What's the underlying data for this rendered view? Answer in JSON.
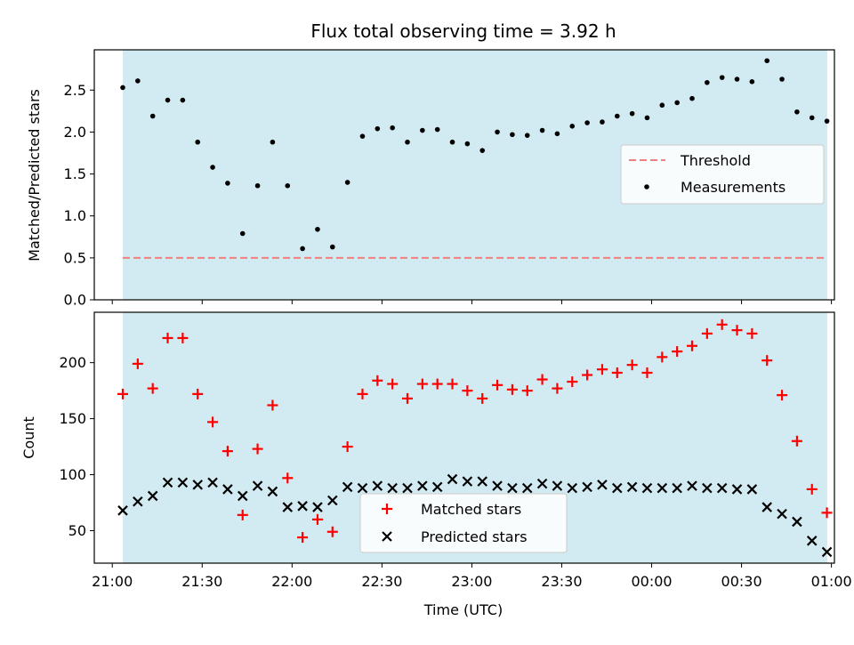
{
  "title": "Flux total observing time = 3.92 h",
  "chart_data": [
    {
      "type": "scatter",
      "panel": "top",
      "ylabel": "Matched/Predicted stars",
      "ylim": [
        0,
        2.98
      ],
      "yticks": [
        0.0,
        0.5,
        1.0,
        1.5,
        2.0,
        2.5
      ],
      "ytick_labels": [
        "0.0",
        "0.5",
        "1.0",
        "1.5",
        "2.0",
        "2.5"
      ],
      "threshold": {
        "name": "Threshold",
        "value": 0.5,
        "color": "#f08080",
        "style": "dashed"
      },
      "series": [
        {
          "name": "Measurements",
          "marker": "dot",
          "color": "#000000",
          "values": [
            2.53,
            2.61,
            2.19,
            2.38,
            2.38,
            1.88,
            1.58,
            1.39,
            0.79,
            1.36,
            1.88,
            1.36,
            0.61,
            0.84,
            0.63,
            1.4,
            1.95,
            2.04,
            2.05,
            1.88,
            2.02,
            2.03,
            1.88,
            1.86,
            1.78,
            2.0,
            1.97,
            1.96,
            2.02,
            1.98,
            2.07,
            2.11,
            2.12,
            2.19,
            2.22,
            2.17,
            2.32,
            2.35,
            2.4,
            2.59,
            2.65,
            2.63,
            2.6,
            2.85,
            2.63,
            2.24,
            2.17,
            2.13
          ]
        }
      ],
      "legend": "center-right",
      "shaded_region": {
        "color": "#add8e6"
      },
      "grid": false
    },
    {
      "type": "scatter",
      "panel": "bottom",
      "ylabel": "Count",
      "xlabel": "Time (UTC)",
      "ylim": [
        21,
        245
      ],
      "yticks": [
        50,
        100,
        150,
        200
      ],
      "ytick_labels": [
        "50",
        "100",
        "150",
        "200"
      ],
      "series": [
        {
          "name": "Matched stars",
          "marker": "plus",
          "color": "#ff0000",
          "values": [
            172,
            199,
            177,
            222,
            222,
            172,
            147,
            121,
            64,
            123,
            162,
            97,
            44,
            60,
            49,
            125,
            172,
            184,
            181,
            168,
            181,
            181,
            181,
            175,
            168,
            180,
            176,
            175,
            185,
            177,
            183,
            189,
            194,
            191,
            198,
            191,
            205,
            210,
            215,
            226,
            234,
            229,
            226,
            202,
            171,
            130,
            87,
            66
          ]
        },
        {
          "name": "Predicted stars",
          "marker": "x",
          "color": "#000000",
          "values": [
            68,
            76,
            81,
            93,
            93,
            91,
            93,
            87,
            81,
            90,
            85,
            71,
            72,
            71,
            77,
            89,
            88,
            90,
            88,
            88,
            90,
            89,
            96,
            94,
            94,
            90,
            88,
            88,
            92,
            90,
            88,
            89,
            91,
            88,
            89,
            88,
            88,
            88,
            90,
            88,
            88,
            87,
            87,
            71,
            65,
            58,
            41,
            31
          ]
        }
      ],
      "legend": "bottom-center",
      "shaded_region": {
        "color": "#add8e6"
      },
      "grid": false
    }
  ],
  "x_axis": {
    "title": "Time (UTC)",
    "range_minutes_from_21_00": [
      -6,
      241
    ],
    "first_sample_minute": 3.5,
    "sample_interval_minutes": 5,
    "shade_start_minute": 3.5,
    "shade_end_minute": 238.6,
    "ticks": [
      {
        "minute": 0,
        "label": "21:00"
      },
      {
        "minute": 30,
        "label": "21:30"
      },
      {
        "minute": 60,
        "label": "22:00"
      },
      {
        "minute": 90,
        "label": "22:30"
      },
      {
        "minute": 120,
        "label": "23:00"
      },
      {
        "minute": 150,
        "label": "23:30"
      },
      {
        "minute": 180,
        "label": "00:00"
      },
      {
        "minute": 210,
        "label": "00:30"
      },
      {
        "minute": 240,
        "label": "01:00"
      }
    ]
  }
}
